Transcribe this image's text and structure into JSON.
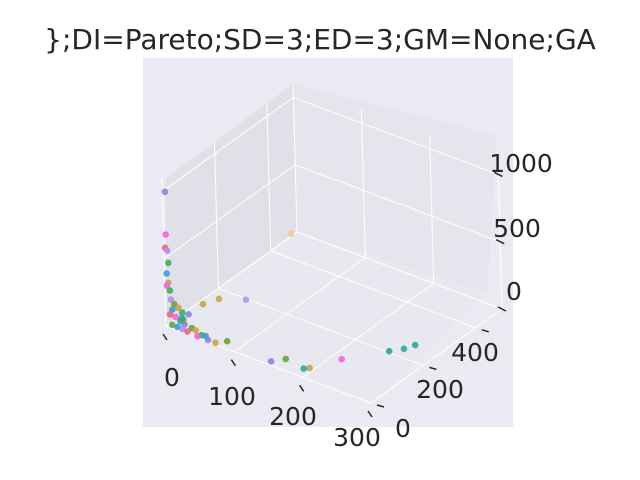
{
  "chart_data": {
    "type": "scatter",
    "title": "};DI=Pareto;SD=3;ED=3;GM=None;GA",
    "xlabel": "",
    "ylabel": "",
    "zlabel": "",
    "grid": true,
    "xlim": [
      0,
      300
    ],
    "ylim": [
      0,
      500
    ],
    "zlim": [
      0,
      1100
    ],
    "xticks": [
      "0",
      "100",
      "200",
      "300"
    ],
    "yticks": [
      "0",
      "200",
      "400"
    ],
    "zticks": [
      "0",
      "500",
      "1000"
    ],
    "points": [
      {
        "x": 3,
        "y": 2,
        "z": 1000,
        "color": "#8c83e6"
      },
      {
        "x": 2,
        "y": 3,
        "z": 680,
        "color": "#f564e3"
      },
      {
        "x": 1,
        "y": 2,
        "z": 580,
        "color": "#e9687b"
      },
      {
        "x": 3,
        "y": 4,
        "z": 560,
        "color": "#b392f0"
      },
      {
        "x": 4,
        "y": 5,
        "z": 470,
        "color": "#3fb05d"
      },
      {
        "x": 2,
        "y": 3,
        "z": 390,
        "color": "#3a9fcf"
      },
      {
        "x": 3,
        "y": 5,
        "z": 320,
        "color": "#cba24c"
      },
      {
        "x": 2,
        "y": 2,
        "z": 300,
        "color": "#f564e3"
      },
      {
        "x": 4,
        "y": 8,
        "z": 260,
        "color": "#3fb05d"
      },
      {
        "x": 30,
        "y": 10,
        "z": 130,
        "color": "#8c83e6"
      },
      {
        "x": 6,
        "y": 6,
        "z": 200,
        "color": "#b392f0"
      },
      {
        "x": 10,
        "y": 8,
        "z": 170,
        "color": "#6ca332"
      },
      {
        "x": 15,
        "y": 10,
        "z": 150,
        "color": "#cba24c"
      },
      {
        "x": 20,
        "y": 12,
        "z": 120,
        "color": "#3fb05d"
      },
      {
        "x": 8,
        "y": 5,
        "z": 130,
        "color": "#3a9fcf"
      },
      {
        "x": 5,
        "y": 4,
        "z": 90,
        "color": "#e9687b"
      },
      {
        "x": 12,
        "y": 7,
        "z": 80,
        "color": "#f564e3"
      },
      {
        "x": 18,
        "y": 9,
        "z": 60,
        "color": "#29a99d"
      },
      {
        "x": 25,
        "y": 6,
        "z": 50,
        "color": "#8c83e6"
      },
      {
        "x": 35,
        "y": 8,
        "z": 40,
        "color": "#6ca332"
      },
      {
        "x": 40,
        "y": 10,
        "z": 30,
        "color": "#cba24c"
      },
      {
        "x": 50,
        "y": 5,
        "z": 20,
        "color": "#3fb05d"
      },
      {
        "x": 8,
        "y": 3,
        "z": 20,
        "color": "#6ca332"
      },
      {
        "x": 15,
        "y": 5,
        "z": 15,
        "color": "#3a9fcf"
      },
      {
        "x": 22,
        "y": 6,
        "z": 10,
        "color": "#b392f0"
      },
      {
        "x": 30,
        "y": 4,
        "z": 10,
        "color": "#e9687b"
      },
      {
        "x": 45,
        "y": 3,
        "z": 5,
        "color": "#f564e3"
      },
      {
        "x": 60,
        "y": 4,
        "z": 5,
        "color": "#8c83e6"
      },
      {
        "x": 70,
        "y": 6,
        "z": 0,
        "color": "#cba24c"
      },
      {
        "x": 55,
        "y": 8,
        "z": 20,
        "color": "#3a9fcf"
      },
      {
        "x": 10,
        "y": 40,
        "z": 10,
        "color": "#6ca332"
      },
      {
        "x": 12,
        "y": 30,
        "z": 40,
        "color": "#29a99d"
      },
      {
        "x": 80,
        "y": 25,
        "z": 5,
        "color": "#6ca332"
      },
      {
        "x": 8,
        "y": 120,
        "z": 10,
        "color": "#cba24c"
      },
      {
        "x": 20,
        "y": 150,
        "z": 30,
        "color": "#cba24c"
      },
      {
        "x": 70,
        "y": 300,
        "z": 400,
        "color": "#f2c98f"
      },
      {
        "x": 60,
        "y": 150,
        "z": 100,
        "color": "#b392f0"
      },
      {
        "x": 150,
        "y": 10,
        "z": 10,
        "color": "#8c83e6"
      },
      {
        "x": 160,
        "y": 40,
        "z": 5,
        "color": "#6ca332"
      },
      {
        "x": 195,
        "y": 40,
        "z": 5,
        "color": "#cba24c"
      },
      {
        "x": 190,
        "y": 30,
        "z": 5,
        "color": "#29a99d"
      },
      {
        "x": 215,
        "y": 110,
        "z": 10,
        "color": "#f564e3"
      },
      {
        "x": 250,
        "y": 200,
        "z": 10,
        "color": "#29a99d"
      },
      {
        "x": 260,
        "y": 230,
        "z": 5,
        "color": "#29a99d"
      },
      {
        "x": 265,
        "y": 260,
        "z": 0,
        "color": "#29a99d"
      }
    ]
  }
}
